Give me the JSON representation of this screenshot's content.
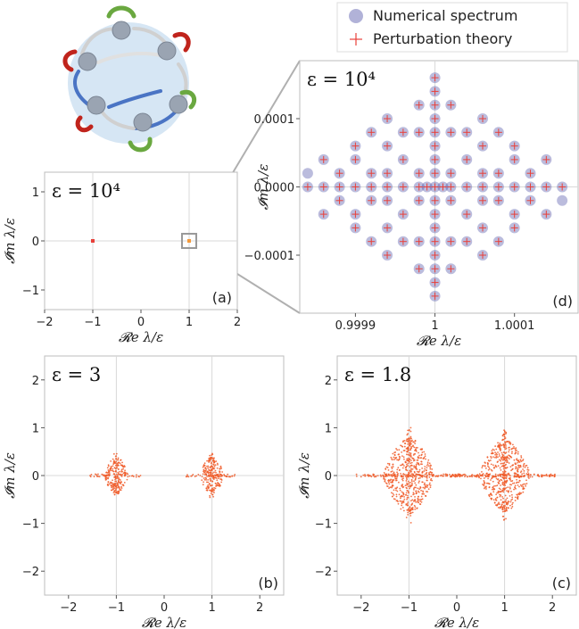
{
  "legend": {
    "numerical": "Numerical spectrum",
    "perturbation": "Perturbation theory",
    "numerical_color": "#3b3f9e",
    "perturbation_color": "#e8403a"
  },
  "chart_data": [
    {
      "id": "a",
      "type": "scatter",
      "panel_label": "(a)",
      "epsilon_label": "ε = 10⁴",
      "xlabel": "𝓡e λ/ε",
      "ylabel": "𝓘m λ/ε",
      "xlim": [
        -2,
        2
      ],
      "ylim": [
        -1.4,
        1.4
      ],
      "xticks": [
        -2,
        -1,
        0,
        1,
        2
      ],
      "xticklabels": [
        "−2",
        "−1",
        "0",
        "1",
        "2"
      ],
      "yticks": [
        -1,
        0,
        1
      ],
      "yticklabels": [
        "−1",
        "0",
        "1"
      ],
      "grid_lines": {
        "x": [
          -1,
          1
        ],
        "y": [
          0
        ]
      },
      "series": [
        {
          "color": "#e8403a",
          "points": [
            [
              -1,
              0
            ]
          ]
        },
        {
          "color": "#f59a3a",
          "points": [
            [
              1,
              0
            ]
          ]
        }
      ],
      "zoom_box": {
        "x": [
          0.9998,
          1.0002
        ],
        "y": [
          -0.00018,
          0.00018
        ]
      }
    },
    {
      "id": "d",
      "type": "scatter",
      "panel_label": "(d)",
      "epsilon_label": "ε = 10⁴",
      "xlabel": "𝓡e λ/ε",
      "ylabel": "𝓘m λ/ε",
      "xlim": [
        0.99983,
        1.00018
      ],
      "ylim": [
        -0.000185,
        0.000185
      ],
      "xticks": [
        0.9999,
        1,
        1.0001
      ],
      "xticklabels": [
        "0.9999",
        "1",
        "1.0001"
      ],
      "yticks": [
        0.0001,
        0,
        -0.0001
      ],
      "yticklabels": [
        "0.0001",
        "0.0000",
        "−0.0001"
      ],
      "grid_lines": {
        "x": [
          1
        ],
        "y": [
          0
        ]
      },
      "numerical_spectrum": [
        [
          1,
          0
        ],
        [
          1,
          2e-05
        ],
        [
          1,
          -2e-05
        ],
        [
          1,
          4e-05
        ],
        [
          1,
          -4e-05
        ],
        [
          1,
          6e-05
        ],
        [
          1,
          -6e-05
        ],
        [
          1,
          8e-05
        ],
        [
          1,
          -8e-05
        ],
        [
          1,
          0.0001
        ],
        [
          1,
          -0.0001
        ],
        [
          1,
          0.00012
        ],
        [
          1,
          -0.00012
        ],
        [
          1,
          0.00014
        ],
        [
          1,
          -0.00014
        ],
        [
          1,
          0.00016
        ],
        [
          1,
          -0.00016
        ],
        [
          0.99998,
          2e-05
        ],
        [
          0.99998,
          -2e-05
        ],
        [
          1.00002,
          2e-05
        ],
        [
          1.00002,
          -2e-05
        ],
        [
          0.99998,
          8e-05
        ],
        [
          0.99998,
          -8e-05
        ],
        [
          1.00002,
          8e-05
        ],
        [
          1.00002,
          -8e-05
        ],
        [
          0.99998,
          0.00012
        ],
        [
          0.99998,
          -0.00012
        ],
        [
          1.00002,
          0.00012
        ],
        [
          1.00002,
          -0.00012
        ],
        [
          0.99996,
          4e-05
        ],
        [
          0.99996,
          -4e-05
        ],
        [
          1.00004,
          4e-05
        ],
        [
          1.00004,
          -4e-05
        ],
        [
          0.99996,
          8e-05
        ],
        [
          0.99996,
          -8e-05
        ],
        [
          1.00004,
          8e-05
        ],
        [
          1.00004,
          -8e-05
        ],
        [
          0.99994,
          6e-05
        ],
        [
          0.99994,
          -6e-05
        ],
        [
          1.00006,
          6e-05
        ],
        [
          1.00006,
          -6e-05
        ],
        [
          0.99994,
          0.0001
        ],
        [
          0.99994,
          -0.0001
        ],
        [
          1.00006,
          0.0001
        ],
        [
          1.00006,
          -0.0001
        ],
        [
          0.99994,
          2e-05
        ],
        [
          0.99994,
          -2e-05
        ],
        [
          1.00006,
          2e-05
        ],
        [
          1.00006,
          -2e-05
        ],
        [
          0.99992,
          2e-05
        ],
        [
          0.99992,
          -2e-05
        ],
        [
          1.00008,
          2e-05
        ],
        [
          1.00008,
          -2e-05
        ],
        [
          0.99992,
          8e-05
        ],
        [
          0.99992,
          -8e-05
        ],
        [
          1.00008,
          8e-05
        ],
        [
          1.00008,
          -8e-05
        ],
        [
          0.9999,
          4e-05
        ],
        [
          0.9999,
          -4e-05
        ],
        [
          1.0001,
          4e-05
        ],
        [
          1.0001,
          -4e-05
        ],
        [
          0.9999,
          6e-05
        ],
        [
          0.9999,
          -6e-05
        ],
        [
          1.0001,
          6e-05
        ],
        [
          1.0001,
          -6e-05
        ],
        [
          0.99988,
          2e-05
        ],
        [
          0.99988,
          -2e-05
        ],
        [
          1.00012,
          2e-05
        ],
        [
          1.00012,
          -2e-05
        ],
        [
          0.99986,
          4e-05
        ],
        [
          0.99986,
          -4e-05
        ],
        [
          1.00014,
          4e-05
        ],
        [
          1.00014,
          -4e-05
        ],
        [
          0.99986,
          0
        ],
        [
          1.00014,
          0
        ],
        [
          0.99984,
          0
        ],
        [
          1.00016,
          0
        ],
        [
          0.99988,
          0
        ],
        [
          1.00012,
          0
        ],
        [
          0.9999,
          0
        ],
        [
          1.0001,
          0
        ],
        [
          0.99992,
          0
        ],
        [
          1.00008,
          0
        ],
        [
          0.99994,
          0
        ],
        [
          1.00006,
          0
        ],
        [
          0.99996,
          0
        ],
        [
          1.00004,
          0
        ],
        [
          0.99998,
          0
        ],
        [
          1.00002,
          0
        ],
        [
          0.99999,
          0
        ],
        [
          1.00001,
          0
        ],
        [
          0.99984,
          2e-05
        ],
        [
          1.00016,
          -2e-05
        ]
      ],
      "perturbation_theory": [
        [
          1,
          0
        ],
        [
          1,
          2e-05
        ],
        [
          1,
          -2e-05
        ],
        [
          1,
          4e-05
        ],
        [
          1,
          -4e-05
        ],
        [
          1,
          6e-05
        ],
        [
          1,
          -6e-05
        ],
        [
          1,
          8e-05
        ],
        [
          1,
          -8e-05
        ],
        [
          1,
          0.0001
        ],
        [
          1,
          -0.0001
        ],
        [
          1,
          0.00012
        ],
        [
          1,
          -0.00012
        ],
        [
          1,
          0.00014
        ],
        [
          1,
          -0.00014
        ],
        [
          1,
          0.00016
        ],
        [
          1,
          -0.00016
        ],
        [
          0.99998,
          2e-05
        ],
        [
          0.99998,
          -2e-05
        ],
        [
          1.00002,
          2e-05
        ],
        [
          1.00002,
          -2e-05
        ],
        [
          0.99998,
          8e-05
        ],
        [
          0.99998,
          -8e-05
        ],
        [
          1.00002,
          8e-05
        ],
        [
          1.00002,
          -8e-05
        ],
        [
          0.99998,
          0.00012
        ],
        [
          0.99998,
          -0.00012
        ],
        [
          1.00002,
          0.00012
        ],
        [
          1.00002,
          -0.00012
        ],
        [
          0.99996,
          4e-05
        ],
        [
          0.99996,
          -4e-05
        ],
        [
          1.00004,
          4e-05
        ],
        [
          1.00004,
          -4e-05
        ],
        [
          0.99996,
          8e-05
        ],
        [
          0.99996,
          -8e-05
        ],
        [
          1.00004,
          8e-05
        ],
        [
          1.00004,
          -8e-05
        ],
        [
          0.99994,
          6e-05
        ],
        [
          0.99994,
          -6e-05
        ],
        [
          1.00006,
          6e-05
        ],
        [
          1.00006,
          -6e-05
        ],
        [
          0.99994,
          0.0001
        ],
        [
          0.99994,
          -0.0001
        ],
        [
          1.00006,
          0.0001
        ],
        [
          1.00006,
          -0.0001
        ],
        [
          0.99994,
          2e-05
        ],
        [
          0.99994,
          -2e-05
        ],
        [
          1.00006,
          2e-05
        ],
        [
          1.00006,
          -2e-05
        ],
        [
          0.99992,
          2e-05
        ],
        [
          0.99992,
          -2e-05
        ],
        [
          1.00008,
          2e-05
        ],
        [
          1.00008,
          -2e-05
        ],
        [
          0.99992,
          8e-05
        ],
        [
          0.99992,
          -8e-05
        ],
        [
          1.00008,
          8e-05
        ],
        [
          1.00008,
          -8e-05
        ],
        [
          0.9999,
          4e-05
        ],
        [
          0.9999,
          -4e-05
        ],
        [
          1.0001,
          4e-05
        ],
        [
          1.0001,
          -4e-05
        ],
        [
          0.9999,
          6e-05
        ],
        [
          0.9999,
          -6e-05
        ],
        [
          1.0001,
          6e-05
        ],
        [
          1.0001,
          -6e-05
        ],
        [
          0.99988,
          2e-05
        ],
        [
          0.99988,
          -2e-05
        ],
        [
          1.00012,
          2e-05
        ],
        [
          1.00012,
          -2e-05
        ],
        [
          0.99986,
          4e-05
        ],
        [
          0.99986,
          -4e-05
        ],
        [
          1.00014,
          4e-05
        ],
        [
          1.00014,
          -4e-05
        ],
        [
          0.99986,
          0
        ],
        [
          1.00014,
          0
        ],
        [
          0.99984,
          0
        ],
        [
          1.00016,
          0
        ],
        [
          0.99988,
          0
        ],
        [
          1.00012,
          0
        ],
        [
          0.9999,
          0
        ],
        [
          1.0001,
          0
        ],
        [
          0.99992,
          0
        ],
        [
          1.00008,
          0
        ],
        [
          0.99994,
          0
        ],
        [
          1.00006,
          0
        ],
        [
          0.99996,
          0
        ],
        [
          1.00004,
          0
        ],
        [
          0.99998,
          0
        ],
        [
          1.00002,
          0
        ],
        [
          0.99999,
          0
        ],
        [
          1.00001,
          0
        ]
      ]
    },
    {
      "id": "b",
      "type": "scatter",
      "panel_label": "(b)",
      "epsilon_label": "ε = 3",
      "xlabel": "𝓡e λ/ε",
      "ylabel": "𝓘m λ/ε",
      "xlim": [
        -2.5,
        2.5
      ],
      "ylim": [
        -2.5,
        2.5
      ],
      "xticks": [
        -2,
        -1,
        0,
        1,
        2
      ],
      "xticklabels": [
        "−2",
        "−1",
        "0",
        "1",
        "2"
      ],
      "yticks": [
        2,
        1,
        0,
        -1,
        -2
      ],
      "yticklabels": [
        "2",
        "1",
        "0",
        "−1",
        "−2"
      ],
      "grid_lines": {
        "x": [
          -1,
          1
        ],
        "y": [
          0
        ]
      },
      "clusters": [
        {
          "center": [
            -1,
            0
          ],
          "rx": 0.25,
          "ry": 0.22,
          "tip": 0.48,
          "tail": 0.55
        },
        {
          "center": [
            1,
            0
          ],
          "rx": 0.25,
          "ry": 0.22,
          "tip": 0.48,
          "tail": 0.55
        }
      ],
      "color": "#f05a28"
    },
    {
      "id": "c",
      "type": "scatter",
      "panel_label": "(c)",
      "epsilon_label": "ε = 1.8",
      "xlabel": "𝓡e λ/ε",
      "ylabel": "𝓘m λ/ε",
      "xlim": [
        -2.5,
        2.5
      ],
      "ylim": [
        -2.5,
        2.5
      ],
      "xticks": [
        -2,
        -1,
        0,
        1,
        2
      ],
      "xticklabels": [
        "−2",
        "−1",
        "0",
        "1",
        "2"
      ],
      "yticks": [
        2,
        1,
        0,
        -1,
        -2
      ],
      "yticklabels": [
        "2",
        "1",
        "0",
        "−1",
        "−2"
      ],
      "grid_lines": {
        "x": [
          -1,
          1
        ],
        "y": [
          0
        ]
      },
      "clusters": [
        {
          "center": [
            -1,
            0
          ],
          "rx": 0.55,
          "ry": 0.7,
          "tip": 1.0,
          "tail": 1.1
        },
        {
          "center": [
            1,
            0
          ],
          "rx": 0.55,
          "ry": 0.7,
          "tip": 0.95,
          "tail": 1.1
        }
      ],
      "color": "#f05a28"
    }
  ]
}
